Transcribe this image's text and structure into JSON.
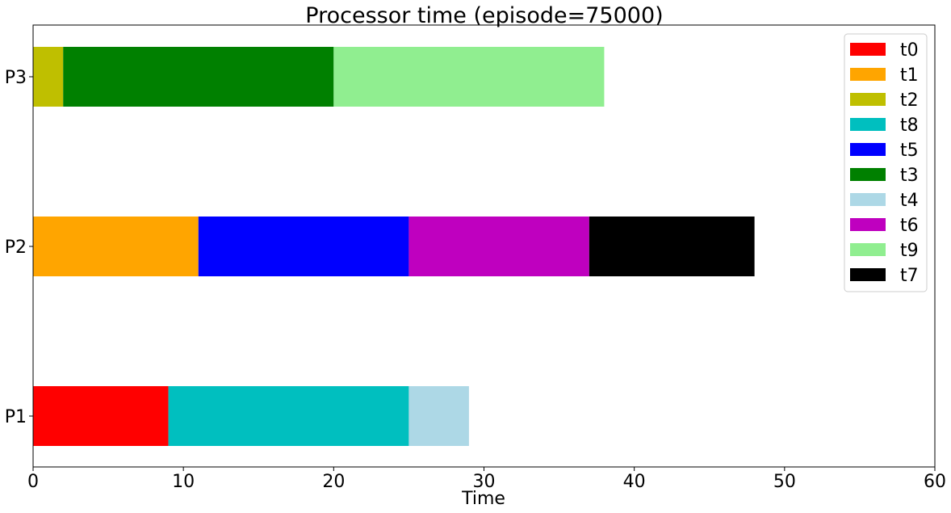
{
  "chart_data": {
    "type": "bar",
    "orientation": "horizontal",
    "stacked": true,
    "title": "Processor time (episode=75000)",
    "xlabel": "Time",
    "ylabel": "",
    "xlim": [
      0,
      60
    ],
    "xticks": [
      0,
      10,
      20,
      30,
      40,
      50,
      60
    ],
    "categories": [
      "P1",
      "P2",
      "P3"
    ],
    "grid": false,
    "legend_position": "top-right",
    "segments": [
      {
        "name": "t0",
        "processor": "P1",
        "start": 0,
        "duration": 9,
        "color": "#ff0000"
      },
      {
        "name": "t8",
        "processor": "P1",
        "start": 9,
        "duration": 16,
        "color": "#00bfbf"
      },
      {
        "name": "t4",
        "processor": "P1",
        "start": 25,
        "duration": 4,
        "color": "#add8e6"
      },
      {
        "name": "t1",
        "processor": "P2",
        "start": 0,
        "duration": 11,
        "color": "#ffa500"
      },
      {
        "name": "t5",
        "processor": "P2",
        "start": 11,
        "duration": 14,
        "color": "#0000ff"
      },
      {
        "name": "t6",
        "processor": "P2",
        "start": 25,
        "duration": 12,
        "color": "#bf00bf"
      },
      {
        "name": "t7",
        "processor": "P2",
        "start": 37,
        "duration": 11,
        "color": "#000000"
      },
      {
        "name": "t2",
        "processor": "P3",
        "start": 0,
        "duration": 2,
        "color": "#bfbf00"
      },
      {
        "name": "t3",
        "processor": "P3",
        "start": 2,
        "duration": 18,
        "color": "#008000"
      },
      {
        "name": "t9",
        "processor": "P3",
        "start": 20,
        "duration": 18,
        "color": "#90ee90"
      }
    ],
    "legend": [
      {
        "label": "t0",
        "color": "#ff0000"
      },
      {
        "label": "t1",
        "color": "#ffa500"
      },
      {
        "label": "t2",
        "color": "#bfbf00"
      },
      {
        "label": "t8",
        "color": "#00bfbf"
      },
      {
        "label": "t5",
        "color": "#0000ff"
      },
      {
        "label": "t3",
        "color": "#008000"
      },
      {
        "label": "t4",
        "color": "#add8e6"
      },
      {
        "label": "t6",
        "color": "#bf00bf"
      },
      {
        "label": "t9",
        "color": "#90ee90"
      },
      {
        "label": "t7",
        "color": "#000000"
      }
    ]
  }
}
